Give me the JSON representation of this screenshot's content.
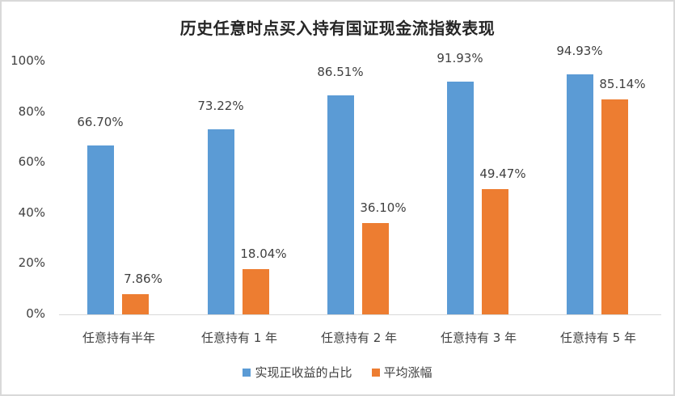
{
  "chart_data": {
    "type": "bar",
    "title": "历史任意时点买入持有国证现金流指数表现",
    "xlabel": "",
    "ylabel": "",
    "ylim": [
      0,
      100
    ],
    "yticks": [
      "0%",
      "20%",
      "40%",
      "60%",
      "80%",
      "100%"
    ],
    "grid": false,
    "legend_position": "bottom",
    "categories": [
      "任意持有半年",
      "任意持有 1 年",
      "任意持有 2 年",
      "任意持有 3 年",
      "任意持有 5 年"
    ],
    "series": [
      {
        "name": "实现正收益的占比",
        "color": "#5b9bd5",
        "values": [
          66.7,
          73.22,
          86.51,
          91.93,
          94.93
        ],
        "labels": [
          "66.70%",
          "73.22%",
          "86.51%",
          "91.93%",
          "94.93%"
        ]
      },
      {
        "name": "平均涨幅",
        "color": "#ed7d31",
        "values": [
          7.86,
          18.04,
          36.1,
          49.47,
          85.14
        ],
        "labels": [
          "7.86%",
          "18.04%",
          "36.10%",
          "49.47%",
          "85.14%"
        ]
      }
    ]
  }
}
